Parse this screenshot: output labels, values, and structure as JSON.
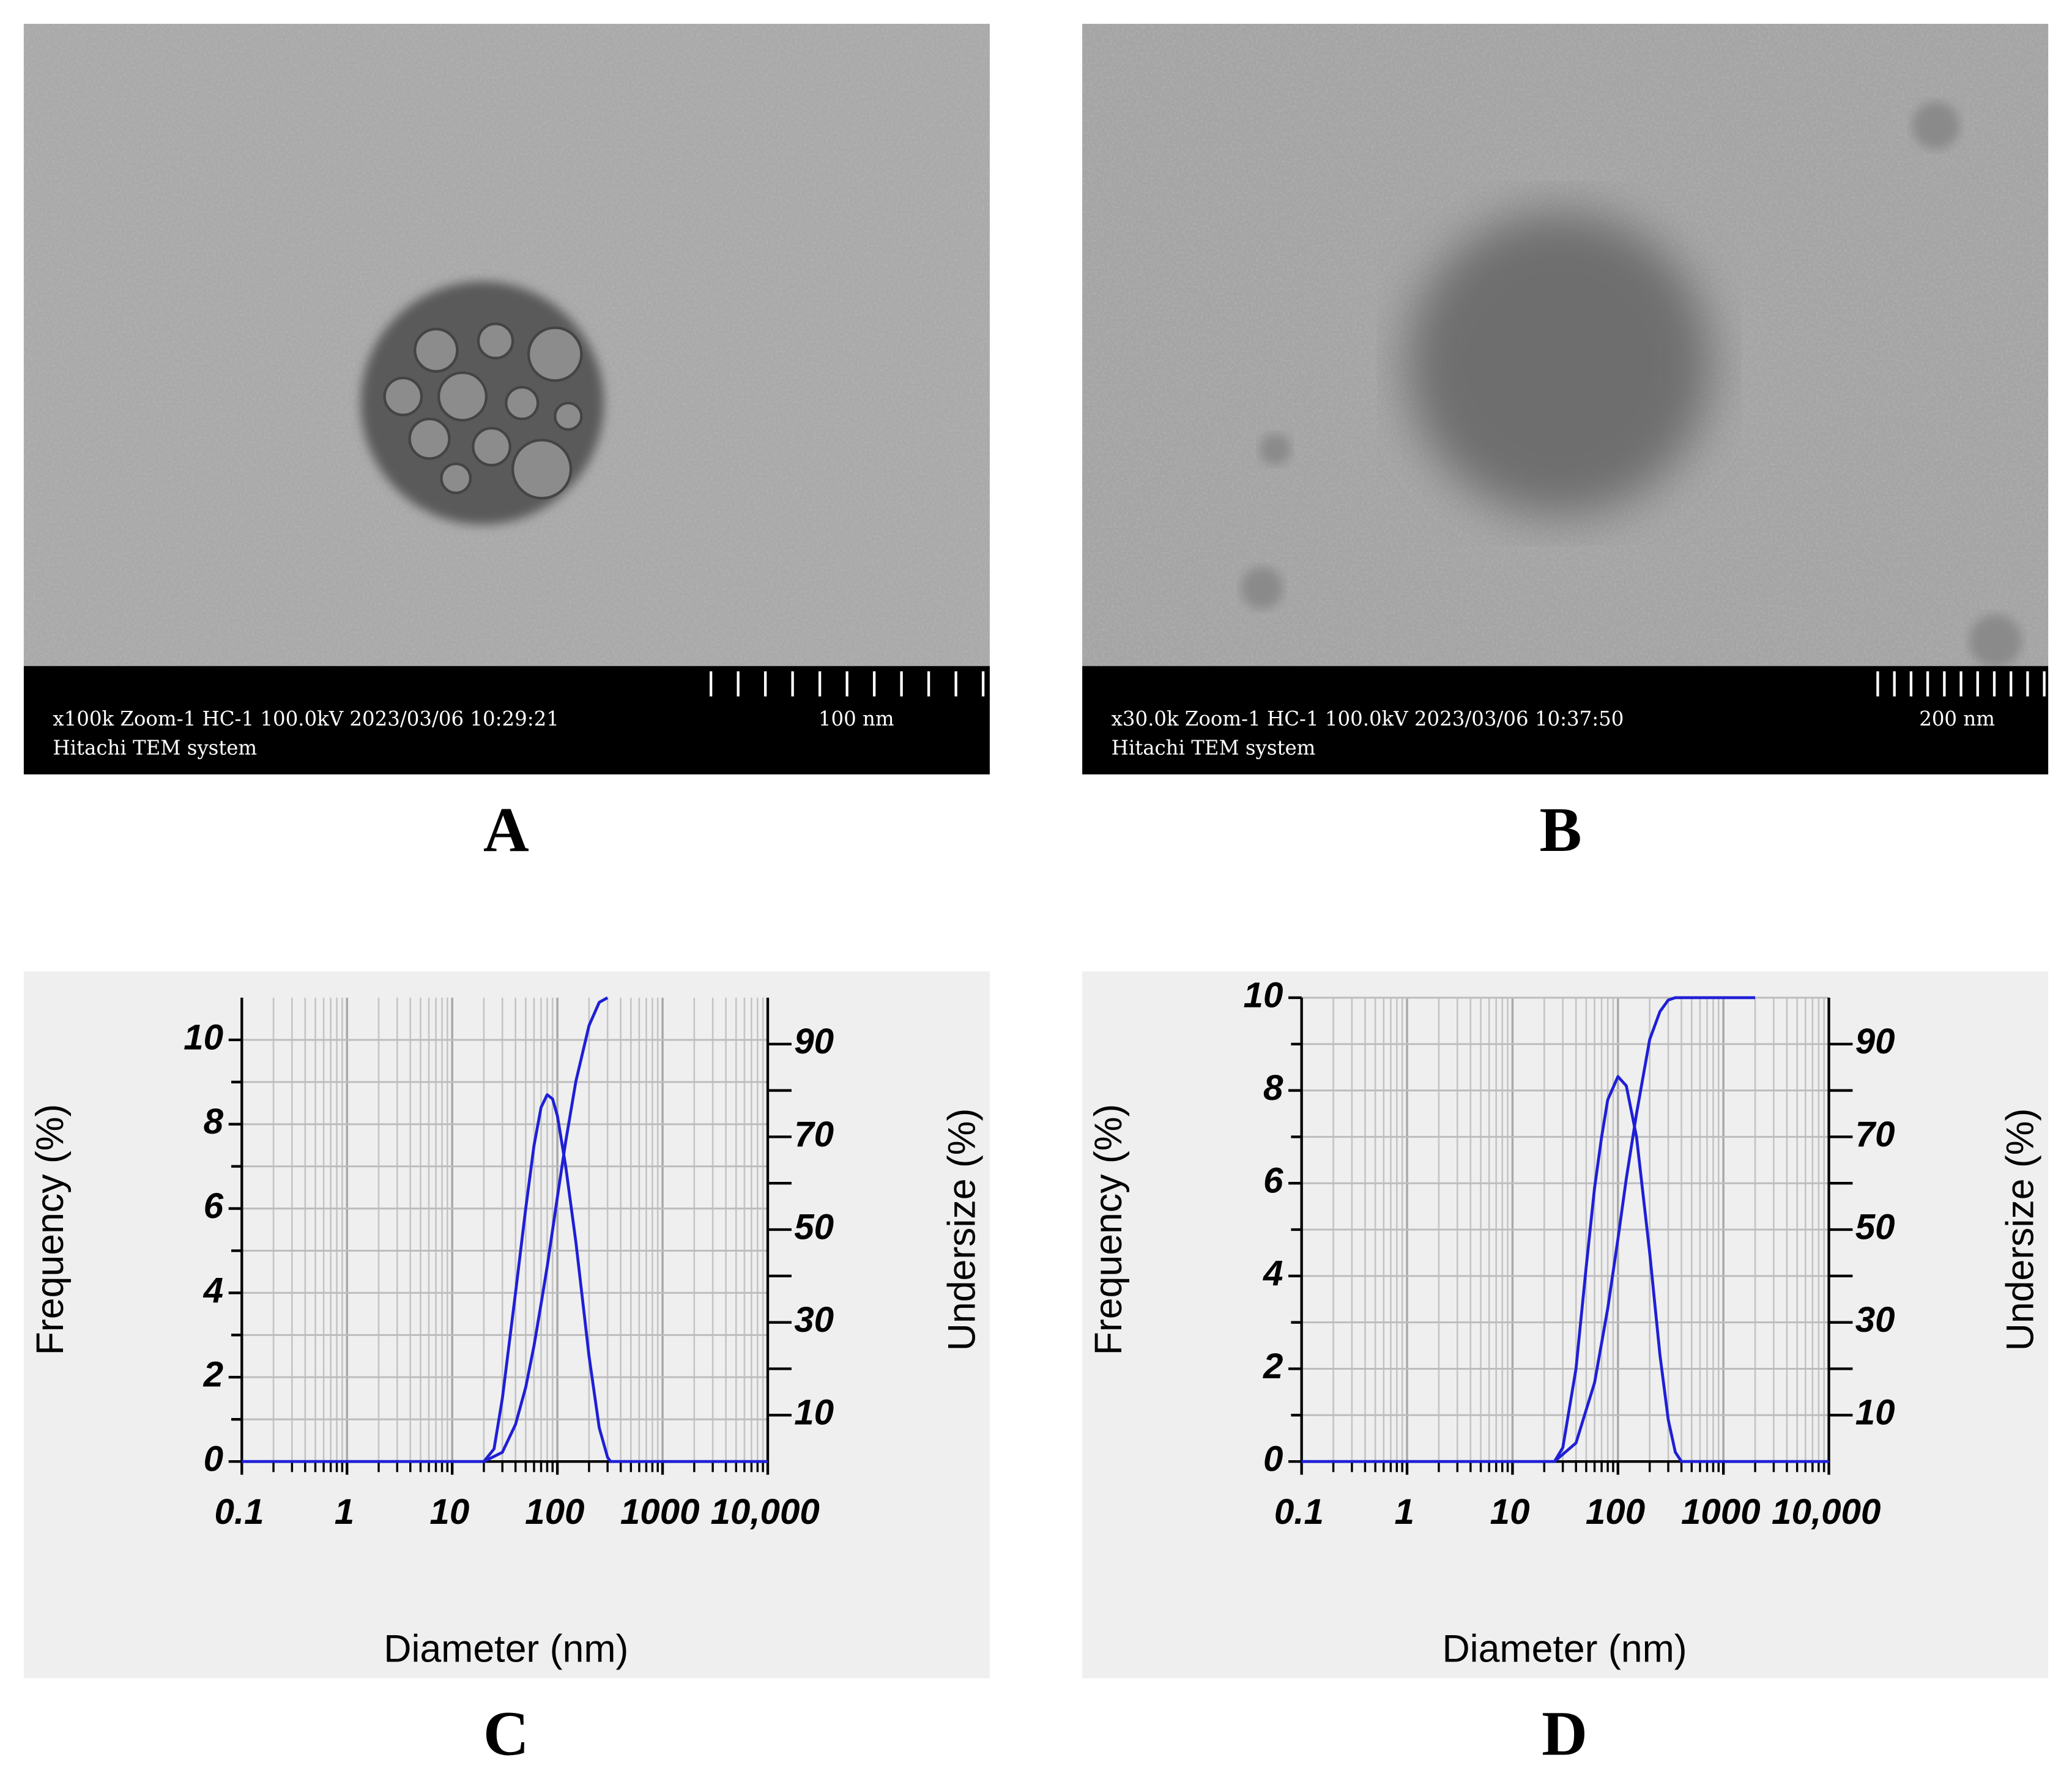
{
  "images": [
    {
      "panel_label": "A",
      "caption": "x100k Zoom-1 HC-1 100.0kV 2023/03/06 10:29:21",
      "system": "Hitachi TEM system",
      "scale_bar": "100 nm"
    },
    {
      "panel_label": "B",
      "caption": "x30.0k Zoom-1 HC-1 100.0kV 2023/03/06 10:37:50",
      "system": "Hitachi TEM system",
      "scale_bar": "200 nm"
    }
  ],
  "chart_data": [
    {
      "type": "line",
      "panel_label": "C",
      "x_label": "Diameter (nm)",
      "y_label": "Frequency (%)",
      "y2_label": "Undersize (%)",
      "log_x": true,
      "grid": true,
      "xlim": [
        0.1,
        10000
      ],
      "xticks": [
        0.1,
        1,
        10,
        100,
        1000,
        {
          "value": 10000,
          "label": "10,000"
        }
      ],
      "xminor": [
        0.2,
        0.3,
        0.4,
        0.5,
        0.6,
        0.7,
        0.8,
        0.9,
        2,
        3,
        4,
        5,
        6,
        7,
        8,
        9,
        20,
        30,
        40,
        50,
        60,
        70,
        80,
        90,
        200,
        300,
        400,
        500,
        600,
        700,
        800,
        900,
        2000,
        3000,
        4000,
        5000,
        6000,
        7000,
        8000,
        9000
      ],
      "ylim": [
        0,
        11
      ],
      "yticks": [
        0,
        2,
        4,
        6,
        8,
        10
      ],
      "yminor": [
        1,
        3,
        5,
        7,
        9
      ],
      "y2lim": [
        0,
        100
      ],
      "y2ticks": [
        10,
        30,
        50,
        70,
        90
      ],
      "y2minor": [
        20,
        40,
        60,
        80
      ],
      "series": [
        {
          "color": "#1f1fd6",
          "x": [
            0.1,
            20,
            25,
            30,
            40,
            50,
            60,
            70,
            80,
            90,
            100,
            120,
            150,
            200,
            250,
            300,
            320,
            10000
          ],
          "values": [
            0,
            0,
            0.3,
            1.5,
            4.0,
            6.0,
            7.5,
            8.4,
            8.7,
            8.6,
            8.2,
            7.0,
            5.2,
            2.5,
            0.8,
            0.1,
            0,
            0
          ]
        },
        {
          "color": "#1f1fd6",
          "axis": "y2",
          "x": [
            20,
            30,
            40,
            50,
            60,
            70,
            80,
            100,
            120,
            150,
            200,
            250,
            300
          ],
          "values": [
            0,
            2,
            8,
            16,
            25,
            34,
            42,
            57,
            69,
            82,
            94,
            99,
            100
          ]
        }
      ]
    },
    {
      "type": "line",
      "panel_label": "D",
      "x_label": "Diameter (nm)",
      "y_label": "Frequency (%)",
      "y2_label": "Undersize (%)",
      "log_x": true,
      "grid": true,
      "xlim": [
        0.1,
        10000
      ],
      "xticks": [
        0.1,
        1,
        10,
        100,
        1000,
        {
          "value": 10000,
          "label": "10,000"
        }
      ],
      "xminor": [
        0.2,
        0.3,
        0.4,
        0.5,
        0.6,
        0.7,
        0.8,
        0.9,
        2,
        3,
        4,
        5,
        6,
        7,
        8,
        9,
        20,
        30,
        40,
        50,
        60,
        70,
        80,
        90,
        200,
        300,
        400,
        500,
        600,
        700,
        800,
        900,
        2000,
        3000,
        4000,
        5000,
        6000,
        7000,
        8000,
        9000
      ],
      "ylim": [
        0,
        10
      ],
      "yticks": [
        0,
        2,
        4,
        6,
        8,
        10
      ],
      "yminor": [
        1,
        3,
        5,
        7,
        9
      ],
      "y2lim": [
        0,
        100
      ],
      "y2ticks": [
        10,
        30,
        50,
        70,
        90
      ],
      "y2minor": [
        20,
        40,
        60,
        80
      ],
      "series": [
        {
          "color": "#1f1fd6",
          "x": [
            0.1,
            25,
            30,
            40,
            50,
            60,
            70,
            80,
            100,
            120,
            150,
            200,
            250,
            300,
            350,
            400,
            10000
          ],
          "values": [
            0,
            0,
            0.3,
            2.0,
            4.2,
            5.9,
            7.0,
            7.8,
            8.3,
            8.1,
            7.0,
            4.5,
            2.3,
            0.9,
            0.2,
            0,
            0
          ]
        },
        {
          "color": "#1f1fd6",
          "axis": "y2",
          "x": [
            25,
            40,
            60,
            80,
            100,
            120,
            150,
            200,
            250,
            300,
            350,
            2000
          ],
          "values": [
            0,
            4,
            17,
            33,
            48,
            61,
            75,
            91,
            97,
            99.5,
            100,
            100
          ]
        }
      ]
    }
  ]
}
